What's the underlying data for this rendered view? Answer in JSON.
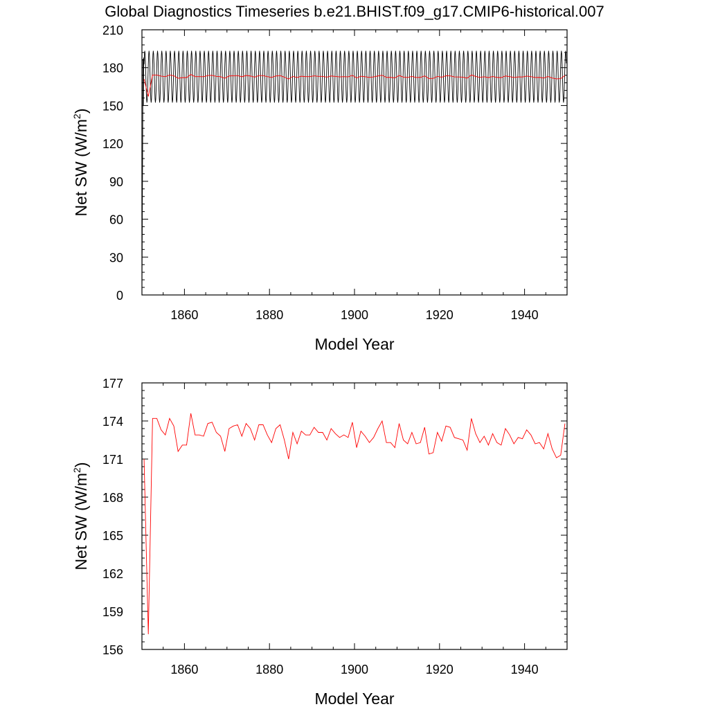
{
  "title": "Global Diagnostics Timeseries b.e21.BHIST.f09_g17.CMIP6-historical.007",
  "chart_data": [
    {
      "type": "line",
      "xlabel": "Model Year",
      "ylabel_main": "Net SW (W/m",
      "ylabel_sup": "2",
      "ylabel_close": ")",
      "xlim": [
        1850,
        1950
      ],
      "ylim": [
        0,
        210
      ],
      "xticks": [
        1860,
        1880,
        1900,
        1920,
        1940
      ],
      "yticks": [
        0,
        30,
        60,
        90,
        120,
        150,
        180,
        210
      ],
      "monthly": {
        "color": "#000000",
        "start": 1850.0,
        "step": 0.08333333,
        "spinup": [
          0.0,
          60.0,
          120.0,
          187.0,
          150.0,
          188.0
        ],
        "cycle_mean": 172.8,
        "cycle_amplitude": 20.5,
        "cycle_phase_year": 0.17,
        "cycle_start": 1850.5,
        "cycle_end": 1949.9
      },
      "annual": {
        "color": "#ff0000",
        "x": [
          1850.5,
          1851.5,
          1852.5,
          1853.5,
          1854.5,
          1855.5,
          1856.5,
          1857.5,
          1858.5,
          1859.5,
          1860.5,
          1861.5,
          1862.5,
          1863.5,
          1864.5,
          1865.5,
          1866.5,
          1867.5,
          1868.5,
          1869.5,
          1870.5,
          1871.5,
          1872.5,
          1873.5,
          1874.5,
          1875.5,
          1876.5,
          1877.5,
          1878.5,
          1879.5,
          1880.5,
          1881.5,
          1882.5,
          1883.5,
          1884.5,
          1885.5,
          1886.5,
          1887.5,
          1888.5,
          1889.5,
          1890.5,
          1891.5,
          1892.5,
          1893.5,
          1894.5,
          1895.5,
          1896.5,
          1897.5,
          1898.5,
          1899.5,
          1900.5,
          1901.5,
          1902.5,
          1903.5,
          1904.5,
          1905.5,
          1906.5,
          1907.5,
          1908.5,
          1909.5,
          1910.5,
          1911.5,
          1912.5,
          1913.5,
          1914.5,
          1915.5,
          1916.5,
          1917.5,
          1918.5,
          1919.5,
          1920.5,
          1921.5,
          1922.5,
          1923.5,
          1924.5,
          1925.5,
          1926.5,
          1927.5,
          1928.5,
          1929.5,
          1930.5,
          1931.5,
          1932.5,
          1933.5,
          1934.5,
          1935.5,
          1936.5,
          1937.5,
          1938.5,
          1939.5,
          1940.5,
          1941.5,
          1942.5,
          1943.5,
          1944.5,
          1945.5,
          1946.5,
          1947.5,
          1948.5,
          1949.5
        ],
        "y": [
          171.0,
          157.2,
          174.2,
          174.2,
          173.3,
          172.9,
          174.2,
          173.6,
          171.6,
          172.1,
          172.1,
          174.6,
          172.9,
          172.9,
          172.8,
          173.8,
          173.9,
          173.1,
          172.8,
          171.6,
          173.4,
          173.6,
          173.7,
          172.8,
          173.8,
          173.4,
          172.5,
          173.7,
          173.7,
          172.9,
          172.3,
          173.4,
          173.7,
          172.5,
          171.0,
          173.1,
          172.2,
          173.2,
          172.9,
          172.9,
          173.5,
          173.1,
          173.1,
          172.5,
          173.4,
          173.0,
          172.7,
          172.9,
          172.7,
          173.9,
          171.9,
          173.2,
          172.8,
          172.3,
          172.7,
          173.4,
          174.0,
          172.3,
          172.3,
          171.9,
          173.8,
          172.5,
          172.2,
          173.1,
          172.2,
          172.3,
          173.5,
          171.4,
          171.5,
          173.1,
          172.4,
          173.6,
          173.5,
          172.7,
          172.6,
          172.5,
          171.7,
          174.2,
          173.0,
          172.3,
          172.8,
          172.1,
          173.0,
          172.3,
          172.1,
          173.4,
          172.9,
          172.2,
          172.7,
          172.6,
          173.3,
          172.9,
          172.2,
          172.3,
          171.8,
          173.0,
          171.8,
          171.1,
          171.3,
          173.8
        ]
      }
    },
    {
      "type": "line",
      "xlabel": "Model Year",
      "ylabel_main": "Net SW (W/m",
      "ylabel_sup": "2",
      "ylabel_close": ")",
      "xlim": [
        1850,
        1950
      ],
      "ylim": [
        156,
        177
      ],
      "xticks": [
        1860,
        1880,
        1900,
        1920,
        1940
      ],
      "yticks": [
        156,
        159,
        162,
        165,
        168,
        171,
        174,
        177
      ],
      "annual_ref": "chart_data.0.annual"
    }
  ]
}
